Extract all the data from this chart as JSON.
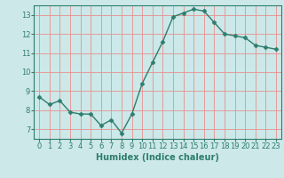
{
  "xlabel": "Humidex (Indice chaleur)",
  "x_values": [
    0,
    1,
    2,
    3,
    4,
    5,
    6,
    7,
    8,
    9,
    10,
    11,
    12,
    13,
    14,
    15,
    16,
    17,
    18,
    19,
    20,
    21,
    22,
    23
  ],
  "y_values": [
    8.7,
    8.3,
    8.5,
    7.9,
    7.8,
    7.8,
    7.2,
    7.5,
    6.8,
    7.8,
    9.4,
    10.5,
    11.6,
    12.9,
    13.1,
    13.3,
    13.2,
    12.6,
    12.0,
    11.9,
    11.8,
    11.4,
    11.3,
    11.2
  ],
  "line_color": "#2e7d6e",
  "marker": "D",
  "marker_size": 2.5,
  "bg_color": "#cce8e8",
  "grid_color": "#e89090",
  "xlim": [
    -0.5,
    23.5
  ],
  "ylim": [
    6.5,
    13.5
  ],
  "yticks": [
    7,
    8,
    9,
    10,
    11,
    12,
    13
  ],
  "xticks": [
    0,
    1,
    2,
    3,
    4,
    5,
    6,
    7,
    8,
    9,
    10,
    11,
    12,
    13,
    14,
    15,
    16,
    17,
    18,
    19,
    20,
    21,
    22,
    23
  ],
  "label_fontsize": 7,
  "tick_fontsize": 6,
  "linewidth": 1.0
}
